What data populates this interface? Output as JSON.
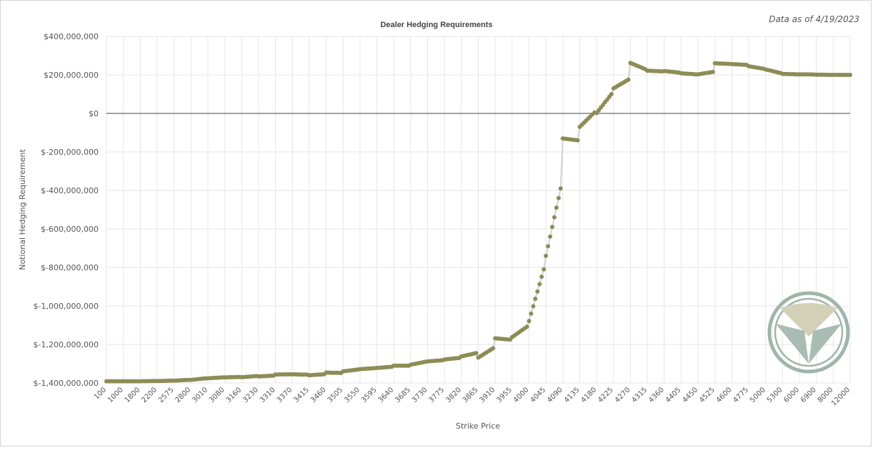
{
  "note": "Data as of 4/19/2023",
  "colors": {
    "marker": "#8c8c55",
    "line": "#d3d3d3",
    "zero_line": "#444444",
    "grid": "#e6e6e6",
    "logo": "#9fb5ab"
  },
  "chart_data": {
    "type": "line",
    "title": "Dealer Hedging Requirements",
    "xlabel": "Strike Price",
    "ylabel": "Notional Hedging Requirement",
    "ylim": [
      -1400000000,
      400000000
    ],
    "yticks": [
      400000000,
      200000000,
      0,
      -200000000,
      -400000000,
      -600000000,
      -800000000,
      -1000000000,
      -1200000000,
      -1400000000
    ],
    "ytick_labels": [
      "$400,000,000",
      "$200,000,000",
      "$0",
      "$-200,000,000",
      "$-400,000,000",
      "$-600,000,000",
      "$-800,000,000",
      "$-1,000,000,000",
      "$-1,200,000,000",
      "$-1,400,000,000"
    ],
    "xtick_labels": [
      "100",
      "1000",
      "1800",
      "2200",
      "2575",
      "2800",
      "3010",
      "3080",
      "3160",
      "3230",
      "3310",
      "3370",
      "3415",
      "3460",
      "3505",
      "3550",
      "3595",
      "3640",
      "3685",
      "3730",
      "3775",
      "3820",
      "3865",
      "3910",
      "3955",
      "4000",
      "4045",
      "4090",
      "4135",
      "4180",
      "4225",
      "4270",
      "4315",
      "4360",
      "4405",
      "4450",
      "4525",
      "4600",
      "4775",
      "5000",
      "5300",
      "6000",
      "6900",
      "8000",
      "12000"
    ],
    "grid": true,
    "legend": "none",
    "zero_line": true,
    "series": [
      {
        "segments": [
          {
            "tick": 0,
            "n": 8,
            "values": [
              -1391000000,
              -1391000000
            ]
          },
          {
            "tick": 1,
            "n": 8,
            "values": [
              -1391000000,
              -1391000000
            ]
          },
          {
            "tick": 2,
            "n": 8,
            "values": [
              -1391000000,
              -1390000000
            ]
          },
          {
            "tick": 3,
            "n": 8,
            "values": [
              -1390000000,
              -1388000000
            ]
          },
          {
            "tick": 4,
            "n": 8,
            "values": [
              -1388000000,
              -1384000000
            ]
          },
          {
            "tick": 5,
            "n": 8,
            "values": [
              -1384000000,
              -1376000000
            ]
          },
          {
            "tick": 6,
            "n": 8,
            "values": [
              -1376000000,
              -1371000000
            ]
          },
          {
            "tick": 7,
            "n": 8,
            "values": [
              -1371000000,
              -1369000000
            ]
          },
          {
            "tick": 8,
            "n": 8,
            "values": [
              -1370000000,
              -1364000000
            ]
          },
          {
            "tick": 9,
            "n": 8,
            "values": [
              -1366000000,
              -1362000000
            ]
          },
          {
            "tick": 10,
            "n": 8,
            "values": [
              -1356000000,
              -1355000000
            ]
          },
          {
            "tick": 11,
            "n": 8,
            "values": [
              -1355000000,
              -1357000000
            ]
          },
          {
            "tick": 12,
            "n": 8,
            "values": [
              -1360000000,
              -1355000000
            ]
          },
          {
            "tick": 13,
            "n": 8,
            "values": [
              -1346000000,
              -1348000000
            ]
          },
          {
            "tick": 14,
            "n": 8,
            "values": [
              -1340000000,
              -1330000000
            ]
          },
          {
            "tick": 15,
            "n": 8,
            "values": [
              -1328000000,
              -1323000000
            ]
          },
          {
            "tick": 16,
            "n": 8,
            "values": [
              -1322000000,
              -1316000000
            ]
          },
          {
            "tick": 17,
            "n": 8,
            "values": [
              -1310000000,
              -1310000000
            ]
          },
          {
            "tick": 18,
            "n": 8,
            "values": [
              -1305000000,
              -1290000000
            ]
          },
          {
            "tick": 19,
            "n": 8,
            "values": [
              -1288000000,
              -1282000000
            ]
          },
          {
            "tick": 20,
            "n": 8,
            "values": [
              -1278000000,
              -1270000000
            ]
          },
          {
            "tick": 21,
            "n": 8,
            "values": [
              -1262000000,
              -1245000000
            ]
          },
          {
            "tick": 22,
            "n": 8,
            "values": [
              -1268000000,
              -1220000000
            ]
          },
          {
            "tick": 23,
            "n": 8,
            "values": [
              -1168000000,
              -1175000000
            ]
          },
          {
            "tick": 24,
            "n": 8,
            "values": [
              -1162000000,
              -1108000000
            ]
          },
          {
            "tick": 25,
            "n": 8,
            "values": [
              -1078000000,
              -810000000
            ]
          },
          {
            "tick": 26,
            "n": 8,
            "values": [
              -740000000,
              -390000000
            ]
          },
          {
            "tick": 27,
            "n": 8,
            "values": [
              -130000000,
              -140000000
            ]
          },
          {
            "tick": 28,
            "n": 8,
            "values": [
              -70000000,
              5000000
            ]
          },
          {
            "tick": 29,
            "n": 8,
            "values": [
              2000000,
              100000000
            ]
          },
          {
            "tick": 30,
            "n": 8,
            "values": [
              130000000,
              175000000
            ]
          },
          {
            "tick": 31,
            "n": 8,
            "values": [
              262000000,
              230000000
            ]
          },
          {
            "tick": 32,
            "n": 8,
            "values": [
              222000000,
              218000000
            ]
          },
          {
            "tick": 33,
            "n": 8,
            "values": [
              220000000,
              212000000
            ]
          },
          {
            "tick": 34,
            "n": 8,
            "values": [
              208000000,
              203000000
            ]
          },
          {
            "tick": 35,
            "n": 8,
            "values": [
              203000000,
              215000000
            ]
          },
          {
            "tick": 36,
            "n": 8,
            "values": [
              260000000,
              257000000
            ]
          },
          {
            "tick": 37,
            "n": 8,
            "values": [
              256000000,
              252000000
            ]
          },
          {
            "tick": 38,
            "n": 8,
            "values": [
              245000000,
              232000000
            ]
          },
          {
            "tick": 39,
            "n": 8,
            "values": [
              228000000,
              210000000
            ]
          },
          {
            "tick": 40,
            "n": 8,
            "values": [
              205000000,
              203000000
            ]
          },
          {
            "tick": 41,
            "n": 8,
            "values": [
              203000000,
              202000000
            ]
          },
          {
            "tick": 42,
            "n": 8,
            "values": [
              201000000,
              200000000
            ]
          },
          {
            "tick": 43,
            "n": 8,
            "values": [
              200000000,
              200000000
            ]
          },
          {
            "tick": 44,
            "n": 1,
            "values": [
              200000000,
              200000000
            ]
          }
        ]
      }
    ]
  }
}
